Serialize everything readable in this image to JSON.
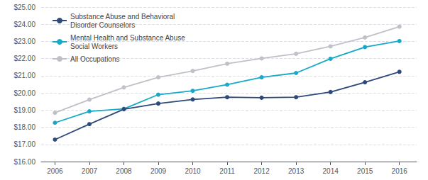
{
  "chart_data": {
    "type": "line",
    "x": [
      2006,
      2007,
      2008,
      2009,
      2010,
      2011,
      2012,
      2013,
      2014,
      2015,
      2016
    ],
    "series": [
      {
        "name": "Substance Abuse and Behavioral\nDisorder Counselors",
        "color": "#2e4a7a",
        "values": [
          17.28,
          18.18,
          19.05,
          19.38,
          19.62,
          19.75,
          19.72,
          19.75,
          20.05,
          20.62,
          21.23
        ]
      },
      {
        "name": "Mental Health and Substance Abuse\nSocial Workers",
        "color": "#17a9c8",
        "values": [
          18.26,
          18.93,
          19.07,
          19.9,
          20.12,
          20.48,
          20.91,
          21.16,
          21.99,
          22.67,
          23.02
        ]
      },
      {
        "name": "All Occupations",
        "color": "#c0c0c8",
        "values": [
          18.84,
          19.61,
          20.32,
          20.91,
          21.28,
          21.7,
          22.01,
          22.28,
          22.71,
          23.23,
          23.86
        ]
      }
    ],
    "xlim": [
      2005.6,
      2016.5
    ],
    "xticks": [
      2006,
      2007,
      2008,
      2009,
      2010,
      2011,
      2012,
      2013,
      2014,
      2015,
      2016
    ],
    "ylim": [
      16.0,
      25.0
    ],
    "yticks": [
      {
        "value": 16.0,
        "label": "$16.00"
      },
      {
        "value": 17.0,
        "label": "$17.00"
      },
      {
        "value": 18.0,
        "label": "$18.00"
      },
      {
        "value": 19.0,
        "label": "$19.00"
      },
      {
        "value": 20.0,
        "label": "$20.00"
      },
      {
        "value": 21.0,
        "label": "$21.00"
      },
      {
        "value": 22.0,
        "label": "$22.00"
      },
      {
        "value": 23.0,
        "label": "$23.00"
      },
      {
        "value": 24.0,
        "label": "$24.00"
      },
      {
        "value": 25.0,
        "label": "$25.00"
      }
    ],
    "grid": true,
    "legend": "upper left",
    "marker": "circle",
    "line_style": "solid"
  }
}
